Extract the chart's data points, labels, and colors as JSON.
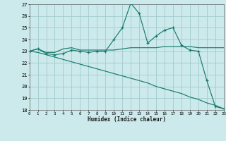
{
  "xlabel": "Humidex (Indice chaleur)",
  "xlim": [
    0,
    23
  ],
  "ylim": [
    18,
    27
  ],
  "xticks": [
    0,
    1,
    2,
    3,
    4,
    5,
    6,
    7,
    8,
    9,
    10,
    11,
    12,
    13,
    14,
    15,
    16,
    17,
    18,
    19,
    20,
    21,
    22,
    23
  ],
  "yticks": [
    18,
    19,
    20,
    21,
    22,
    23,
    24,
    25,
    26,
    27
  ],
  "bg_color": "#cce9eb",
  "grid_color": "#a0ccce",
  "line_color": "#1a7a6e",
  "s1_x": [
    0,
    1,
    2,
    3,
    4,
    5,
    6,
    7,
    8,
    9,
    10,
    11,
    12,
    13,
    14,
    15,
    16,
    17,
    18,
    19,
    20,
    21,
    22,
    23
  ],
  "s1_y": [
    23.0,
    23.2,
    22.8,
    22.7,
    22.8,
    23.1,
    23.0,
    22.9,
    23.0,
    23.0,
    24.0,
    25.0,
    27.1,
    26.2,
    23.7,
    24.3,
    24.8,
    25.0,
    23.5,
    23.1,
    23.0,
    20.5,
    18.3,
    18.1
  ],
  "s2_x": [
    0,
    1,
    2,
    3,
    4,
    5,
    6,
    7,
    8,
    9,
    10,
    11,
    12,
    13,
    14,
    15,
    16,
    17,
    18,
    19,
    20,
    21,
    22,
    23
  ],
  "s2_y": [
    23.0,
    23.2,
    22.9,
    22.9,
    23.2,
    23.3,
    23.1,
    23.1,
    23.1,
    23.1,
    23.1,
    23.2,
    23.3,
    23.3,
    23.3,
    23.3,
    23.4,
    23.4,
    23.4,
    23.4,
    23.3,
    23.3,
    23.3,
    23.3
  ],
  "s3_x": [
    0,
    1,
    2,
    3,
    4,
    5,
    6,
    7,
    8,
    9,
    10,
    11,
    12,
    13,
    14,
    15,
    16,
    17,
    18,
    19,
    20,
    21,
    22,
    23
  ],
  "s3_y": [
    23.0,
    22.9,
    22.7,
    22.5,
    22.3,
    22.1,
    21.9,
    21.7,
    21.5,
    21.3,
    21.1,
    20.9,
    20.7,
    20.5,
    20.3,
    20.0,
    19.8,
    19.6,
    19.4,
    19.1,
    18.9,
    18.6,
    18.4,
    18.1
  ]
}
